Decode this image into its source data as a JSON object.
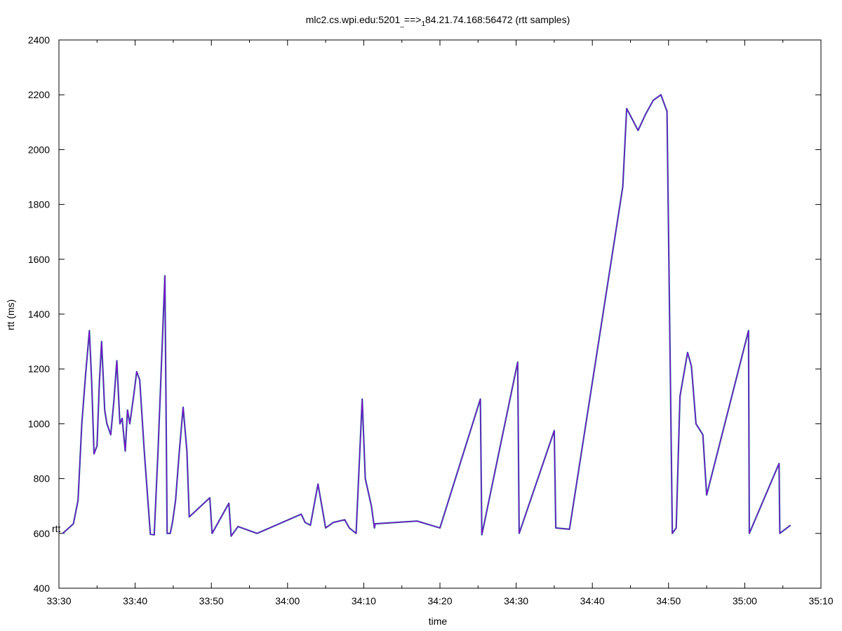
{
  "chart_data": {
    "type": "line",
    "title": {
      "main": "mlc2.cs.wpi.edu:5201",
      "sub1": "_",
      "arrow": "==>",
      "sub2": "1",
      "tail": "84.21.74.168:56472 (rtt samples)"
    },
    "xlabel": "time",
    "ylabel": "rtt (ms)",
    "xlim": [
      "33:30",
      "35:10"
    ],
    "ylim": [
      400,
      2400
    ],
    "xticks": [
      "33:30",
      "33:40",
      "33:50",
      "34:00",
      "34:10",
      "34:20",
      "34:30",
      "34:40",
      "34:50",
      "35:00",
      "35:10"
    ],
    "yticks": [
      400,
      600,
      800,
      1000,
      1200,
      1400,
      1600,
      1800,
      2000,
      2200,
      2400
    ],
    "grid": false,
    "annotations": [
      {
        "text": "rtt",
        "x": "33:30",
        "y": 600
      }
    ],
    "colors": {
      "primary": "#9400d3",
      "secondary": "#009e73",
      "tertiary": "#1f4fb4"
    },
    "series": [
      {
        "x": [
          "33:30.5",
          "33:31.9",
          "33:32.5",
          "33:33.0",
          "33:33.5",
          "33:34.0",
          "33:34.3",
          "33:34.6",
          "33:35.0",
          "33:35.3",
          "33:35.6",
          "33:36.0",
          "33:36.3",
          "33:36.8",
          "33:37.2",
          "33:37.6",
          "33:38.0",
          "33:38.3",
          "33:38.7",
          "33:39.0",
          "33:39.3",
          "33:39.8",
          "33:40.2",
          "33:40.6",
          "33:41.2",
          "33:42.0",
          "33:42.5",
          "33:43.0",
          "33:43.5",
          "33:43.9",
          "33:44.2",
          "33:44.6",
          "33:44.9",
          "33:45.3",
          "33:45.8",
          "33:46.3",
          "33:46.8",
          "33:47.1",
          "33:49.8",
          "33:50.1",
          "33:52.3",
          "33:52.6",
          "33:53.5",
          "33:56.0",
          "34:01.8",
          "34:02.3",
          "34:03.0",
          "34:04.0",
          "34:05.0",
          "34:06.0",
          "34:07.5",
          "34:08.1",
          "34:09.0",
          "34:09.8",
          "34:10.2",
          "34:11.0",
          "34:11.4",
          "34:11.5",
          "34:17.0",
          "34:20.0",
          "34:25.3",
          "34:25.5",
          "34:30.2",
          "34:30.4",
          "34:35.0",
          "34:35.2",
          "34:37.0",
          "34:44.0",
          "34:44.5",
          "34:46.0",
          "34:47.0",
          "34:48.0",
          "34:49.0",
          "34:49.8",
          "34:50.5",
          "34:51.0",
          "34:51.5",
          "34:52.5",
          "34:53.0",
          "34:53.6",
          "34:54.5",
          "34:55.0",
          "35:00.5",
          "35:00.6",
          "35:04.5",
          "35:04.6",
          "35:06.0"
        ],
        "y": [
          600,
          635,
          720,
          1000,
          1180,
          1340,
          1150,
          890,
          920,
          1150,
          1300,
          1050,
          1000,
          960,
          1080,
          1230,
          1000,
          1020,
          900,
          1050,
          1000,
          1100,
          1190,
          1160,
          900,
          597,
          595,
          900,
          1250,
          1540,
          600,
          600,
          640,
          720,
          900,
          1060,
          900,
          660,
          730,
          600,
          710,
          590,
          625,
          600,
          670,
          640,
          630,
          780,
          620,
          640,
          650,
          620,
          600,
          1090,
          800,
          700,
          620,
          635,
          645,
          620,
          1090,
          595,
          1225,
          600,
          975,
          620,
          615,
          1865,
          2150,
          2070,
          2130,
          2180,
          2200,
          2140,
          600,
          620,
          1100,
          1260,
          1210,
          1000,
          960,
          740,
          1340,
          600,
          855,
          600,
          630
        ]
      }
    ]
  }
}
